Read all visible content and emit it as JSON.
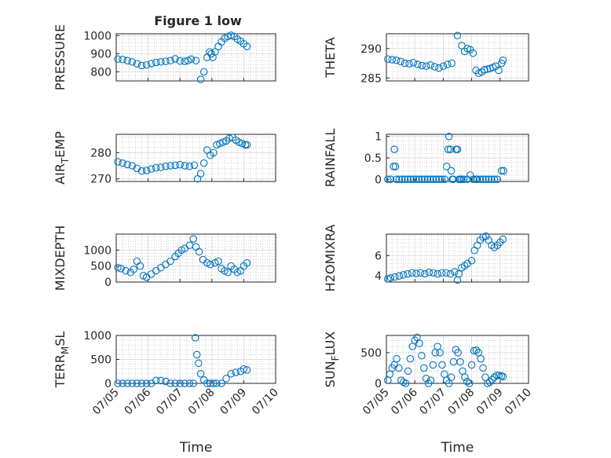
{
  "figure": {
    "title": "Figure 1 low",
    "marker_color": "#0072bd",
    "x_ticks": [
      "07/05",
      "07/06",
      "07/07",
      "07/08",
      "07/09",
      "07/10"
    ],
    "x_label": "Time"
  },
  "chart_data": [
    {
      "id": "pressure",
      "type": "scatter",
      "title": "Figure 1 low",
      "ylabel": "PRESSURE",
      "xlim": [
        0,
        5
      ],
      "ylim": [
        750,
        1010
      ],
      "yticks": [
        800,
        900,
        1000
      ],
      "grid": true,
      "x": [
        0.05,
        0.2,
        0.35,
        0.5,
        0.65,
        0.8,
        0.95,
        1.1,
        1.25,
        1.4,
        1.55,
        1.7,
        1.85,
        2.0,
        2.15,
        2.25,
        2.35,
        2.5,
        2.65,
        2.75,
        2.85,
        2.93,
        2.98,
        3.03,
        3.1,
        3.2,
        3.3,
        3.4,
        3.5,
        3.6,
        3.7,
        3.8,
        3.9,
        4.0,
        4.1
      ],
      "y": [
        870,
        868,
        862,
        855,
        845,
        835,
        838,
        846,
        852,
        855,
        858,
        862,
        872,
        860,
        858,
        862,
        870,
        862,
        758,
        800,
        880,
        910,
        900,
        880,
        910,
        940,
        965,
        985,
        995,
        1002,
        995,
        980,
        970,
        955,
        940
      ]
    },
    {
      "id": "theta",
      "type": "scatter",
      "ylabel": "THETA",
      "xlim": [
        0,
        5
      ],
      "ylim": [
        284.5,
        292.5
      ],
      "yticks": [
        285,
        290
      ],
      "grid": true,
      "x": [
        0.05,
        0.2,
        0.35,
        0.5,
        0.65,
        0.8,
        0.95,
        1.1,
        1.25,
        1.4,
        1.55,
        1.7,
        1.85,
        2.0,
        2.15,
        2.3,
        2.5,
        2.65,
        2.75,
        2.85,
        2.95,
        3.05,
        3.15,
        3.25,
        3.35,
        3.45,
        3.55,
        3.65,
        3.75,
        3.85,
        3.95,
        4.05,
        4.1
      ],
      "y": [
        288.2,
        288.1,
        288.0,
        287.8,
        287.5,
        287.4,
        287.6,
        287.3,
        287.1,
        287.0,
        287.2,
        286.9,
        286.7,
        287.0,
        287.3,
        287.5,
        292.2,
        290.5,
        289.5,
        290.0,
        289.8,
        289.2,
        286.3,
        285.8,
        286.0,
        286.4,
        286.5,
        286.6,
        286.8,
        287.0,
        286.3,
        287.5,
        288.0
      ]
    },
    {
      "id": "air_temp",
      "type": "scatter",
      "ylabel": "AIR_TEMP",
      "xlim": [
        0,
        5
      ],
      "ylim": [
        269,
        287
      ],
      "yticks": [
        270,
        280
      ],
      "grid": true,
      "x": [
        0.05,
        0.2,
        0.35,
        0.5,
        0.65,
        0.8,
        0.95,
        1.1,
        1.25,
        1.4,
        1.55,
        1.7,
        1.85,
        2.0,
        2.15,
        2.3,
        2.45,
        2.55,
        2.65,
        2.75,
        2.85,
        2.95,
        3.05,
        3.15,
        3.25,
        3.35,
        3.45,
        3.55,
        3.65,
        3.75,
        3.85,
        3.95,
        4.05,
        4.1
      ],
      "y": [
        276.5,
        276,
        275.5,
        275,
        274,
        273,
        273.2,
        273.8,
        274.2,
        274.4,
        274.8,
        275,
        275.2,
        275.4,
        275,
        274.8,
        275.2,
        270,
        272,
        276,
        281,
        279,
        280,
        283,
        283.5,
        284,
        284.5,
        285.5,
        285.8,
        284.8,
        284,
        283.5,
        283,
        283
      ]
    },
    {
      "id": "rainfall",
      "type": "scatter",
      "ylabel": "RAINFALL",
      "xlim": [
        0,
        5
      ],
      "ylim": [
        -0.05,
        1.05
      ],
      "yticks": [
        0,
        0.5,
        1
      ],
      "grid": true,
      "x": [
        0.05,
        0.15,
        0.25,
        0.28,
        0.32,
        0.35,
        0.45,
        0.55,
        0.65,
        0.75,
        0.85,
        0.95,
        1.05,
        1.15,
        1.25,
        1.35,
        1.45,
        1.55,
        1.65,
        1.75,
        1.85,
        1.95,
        2.05,
        2.12,
        2.17,
        2.2,
        2.25,
        2.28,
        2.32,
        2.35,
        2.45,
        2.5,
        2.55,
        2.6,
        2.65,
        2.72,
        2.85,
        2.95,
        3.05,
        3.15,
        3.2,
        3.3,
        3.4,
        3.5,
        3.6,
        3.7,
        3.8,
        3.9,
        4.05,
        4.12
      ],
      "y": [
        0,
        0,
        0.3,
        0.7,
        0.3,
        0,
        0,
        0,
        0,
        0,
        0,
        0,
        0,
        0,
        0,
        0,
        0,
        0,
        0,
        0,
        0,
        0,
        0,
        0.3,
        0.7,
        1.0,
        0.7,
        0.2,
        0,
        0,
        0.7,
        0.7,
        0,
        0,
        0,
        0,
        0,
        0.1,
        0,
        0,
        0,
        0,
        0,
        0,
        0,
        0,
        0,
        0,
        0.2,
        0.2
      ]
    },
    {
      "id": "mixdepth",
      "type": "scatter",
      "ylabel": "MIXDEPTH",
      "xlim": [
        0,
        5
      ],
      "ylim": [
        0,
        1500
      ],
      "yticks": [
        0,
        500,
        1000
      ],
      "grid": true,
      "x": [
        0.05,
        0.15,
        0.3,
        0.45,
        0.55,
        0.65,
        0.75,
        0.85,
        0.95,
        1.1,
        1.25,
        1.4,
        1.55,
        1.7,
        1.85,
        1.95,
        2.05,
        2.15,
        2.3,
        2.42,
        2.5,
        2.6,
        2.72,
        2.85,
        2.95,
        3.1,
        3.2,
        3.3,
        3.4,
        3.5,
        3.6,
        3.7,
        3.8,
        3.9,
        4.0,
        4.1
      ],
      "y": [
        450,
        420,
        350,
        300,
        400,
        650,
        500,
        200,
        150,
        250,
        350,
        450,
        550,
        650,
        800,
        900,
        1000,
        1050,
        1150,
        1350,
        1100,
        950,
        700,
        600,
        550,
        600,
        650,
        420,
        350,
        300,
        500,
        400,
        300,
        350,
        500,
        600
      ]
    },
    {
      "id": "h2omixra",
      "type": "scatter",
      "ylabel": "H2OMIXRA",
      "xlim": [
        0,
        5
      ],
      "ylim": [
        3.4,
        8.1
      ],
      "yticks": [
        4,
        6
      ],
      "grid": true,
      "x": [
        0.05,
        0.15,
        0.3,
        0.45,
        0.6,
        0.75,
        0.9,
        1.05,
        1.2,
        1.35,
        1.5,
        1.65,
        1.8,
        1.95,
        2.1,
        2.25,
        2.4,
        2.5,
        2.55,
        2.65,
        2.75,
        2.85,
        3.0,
        3.1,
        3.2,
        3.3,
        3.4,
        3.5,
        3.6,
        3.7,
        3.8,
        3.9,
        4.0,
        4.1
      ],
      "y": [
        3.7,
        3.8,
        3.9,
        4.0,
        4.1,
        4.2,
        4.3,
        4.25,
        4.3,
        4.2,
        4.35,
        4.3,
        4.2,
        4.3,
        4.3,
        4.2,
        4.4,
        3.6,
        4.2,
        4.8,
        5.0,
        5.2,
        5.5,
        6.5,
        7.0,
        7.5,
        7.8,
        7.9,
        7.5,
        7.0,
        6.8,
        7.0,
        7.3,
        7.6
      ]
    },
    {
      "id": "terr_msl",
      "type": "scatter",
      "ylabel": "TERR_MSL",
      "xlim": [
        0,
        5
      ],
      "ylim": [
        0,
        1000
      ],
      "yticks": [
        0,
        500,
        1000
      ],
      "grid": true,
      "x": [
        0.05,
        0.2,
        0.35,
        0.5,
        0.65,
        0.8,
        0.95,
        1.1,
        1.25,
        1.4,
        1.55,
        1.7,
        1.85,
        2.0,
        2.15,
        2.3,
        2.42,
        2.48,
        2.53,
        2.58,
        2.65,
        2.75,
        2.85,
        2.95,
        3.05,
        3.15,
        3.3,
        3.45,
        3.6,
        3.75,
        3.9,
        4.0,
        4.1
      ],
      "y": [
        0,
        0,
        0,
        0,
        0,
        0,
        0,
        0,
        60,
        60,
        40,
        0,
        0,
        0,
        0,
        0,
        0,
        950,
        600,
        420,
        200,
        70,
        0,
        0,
        0,
        0,
        0,
        100,
        200,
        230,
        250,
        300,
        280
      ]
    },
    {
      "id": "sun_flux",
      "type": "scatter",
      "ylabel": "SUN_FLUX",
      "xlim": [
        0,
        5
      ],
      "ylim": [
        0,
        780
      ],
      "yticks": [
        0,
        500
      ],
      "grid": true,
      "x": [
        0.05,
        0.12,
        0.2,
        0.28,
        0.36,
        0.44,
        0.52,
        0.6,
        0.68,
        0.76,
        0.84,
        0.92,
        1.0,
        1.08,
        1.16,
        1.24,
        1.32,
        1.4,
        1.48,
        1.56,
        1.64,
        1.72,
        1.8,
        1.88,
        1.96,
        2.04,
        2.12,
        2.2,
        2.28,
        2.36,
        2.44,
        2.52,
        2.6,
        2.68,
        2.76,
        2.84,
        2.92,
        3.0,
        3.08,
        3.16,
        3.24,
        3.32,
        3.4,
        3.48,
        3.56,
        3.64,
        3.72,
        3.8,
        3.88,
        3.96,
        4.04,
        4.1
      ],
      "y": [
        50,
        150,
        250,
        300,
        400,
        250,
        50,
        20,
        0,
        200,
        400,
        600,
        700,
        750,
        650,
        450,
        250,
        80,
        0,
        50,
        300,
        500,
        600,
        500,
        300,
        150,
        50,
        0,
        100,
        350,
        550,
        500,
        350,
        200,
        100,
        30,
        0,
        300,
        530,
        540,
        500,
        400,
        250,
        100,
        0,
        20,
        60,
        100,
        130,
        130,
        120,
        110
      ]
    }
  ]
}
